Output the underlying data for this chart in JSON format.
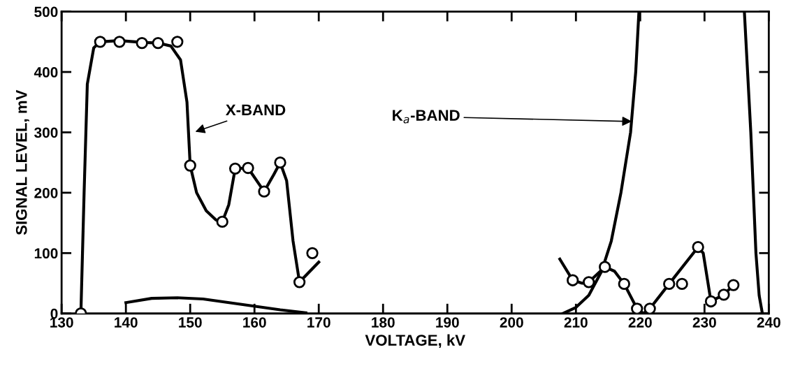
{
  "chart_data": {
    "type": "line",
    "xlabel": "VOLTAGE, kV",
    "ylabel": "SIGNAL LEVEL, mV",
    "xlim": [
      130,
      240
    ],
    "xticks": [
      130,
      140,
      150,
      160,
      170,
      180,
      190,
      200,
      210,
      220,
      230,
      240
    ],
    "ylim": [
      0,
      500
    ],
    "yticks": [
      0,
      100,
      200,
      300,
      400,
      500
    ],
    "grid": false,
    "annotations": [
      {
        "text": "X-BAND",
        "x": 150.5,
        "y": 300
      },
      {
        "text": "K$_{a}$-BAND",
        "x": 219.0,
        "y": 318
      }
    ],
    "series": [
      {
        "color": "#000000",
        "marker": "none",
        "x": [
          133,
          133.5,
          134,
          135,
          136,
          139,
          142.5,
          145,
          147,
          148.5,
          149.5,
          150,
          151,
          152.5,
          154,
          155,
          156,
          157,
          159,
          161.5,
          163,
          164,
          165,
          166,
          167,
          170
        ],
        "values": [
          0,
          200,
          380,
          440,
          450,
          452,
          449,
          448,
          443,
          420,
          350,
          245,
          200,
          170,
          155,
          152,
          180,
          240,
          241,
          202,
          230,
          250,
          220,
          120,
          52,
          85
        ]
      },
      {
        "color": "#000000",
        "marker": "none",
        "x": [
          140,
          144,
          148,
          152,
          158,
          164,
          168
        ],
        "values": [
          18,
          25,
          26,
          24,
          15,
          6,
          1
        ]
      },
      {
        "color": "#000000",
        "marker": "none",
        "x": [
          208,
          210,
          212,
          214,
          215.5,
          217,
          218.5,
          219.3,
          219.8
        ],
        "values": [
          0,
          10,
          30,
          70,
          120,
          200,
          300,
          400,
          500
        ]
      },
      {
        "color": "#000000",
        "marker": "none",
        "x": [
          236.2,
          236.7,
          237.2,
          237.6,
          238.0,
          238.5,
          239
        ],
        "values": [
          500,
          400,
          300,
          200,
          100,
          30,
          0
        ]
      },
      {
        "color": "#000000",
        "marker": "none",
        "x": [
          207.5,
          209.5,
          211,
          212,
          214.5,
          216,
          217.5,
          219.5,
          220.5,
          221.5,
          224.5,
          229,
          229.8,
          231,
          233,
          234.5
        ],
        "values": [
          90,
          55,
          50,
          52,
          77,
          70,
          49,
          8,
          0,
          8,
          49,
          110,
          100,
          20,
          31,
          47
        ]
      },
      {
        "type": "scatter",
        "color": "#000000",
        "marker": "circle",
        "x": [
          133,
          136,
          139,
          142.5,
          145,
          148,
          150,
          155,
          157,
          159,
          161.5,
          164,
          167,
          169,
          209.5,
          212,
          214.5,
          217.5,
          219.5,
          221.5,
          224.5,
          226.5,
          229,
          231,
          233,
          234.5
        ],
        "values": [
          0,
          450,
          450,
          448,
          448,
          450,
          245,
          152,
          240,
          241,
          202,
          250,
          52,
          100,
          55,
          52,
          77,
          49,
          8,
          8,
          49,
          49,
          110,
          20,
          31,
          47
        ]
      }
    ]
  }
}
